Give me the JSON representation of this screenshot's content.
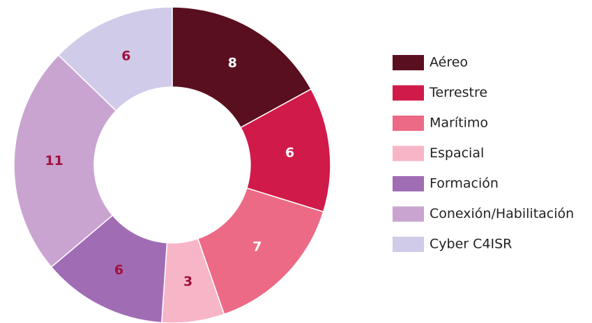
{
  "chart_data": {
    "type": "donut",
    "categories": [
      "Aéreo",
      "Terrestre",
      "Marítimo",
      "Espacial",
      "Formación",
      "Conexión/Habilitación",
      "Cyber C4ISR"
    ],
    "values": [
      8,
      6,
      7,
      3,
      6,
      11,
      6
    ],
    "colors": [
      "#5a0f1f",
      "#d01a4a",
      "#ec6a85",
      "#f7b6c8",
      "#a06db5",
      "#c9a4d1",
      "#cfcbe8"
    ],
    "label_colors": [
      "#ffffff",
      "#ffffff",
      "#ffffff",
      "#a0103a",
      "#a0103a",
      "#a0103a",
      "#a0103a"
    ],
    "legend": "right"
  }
}
